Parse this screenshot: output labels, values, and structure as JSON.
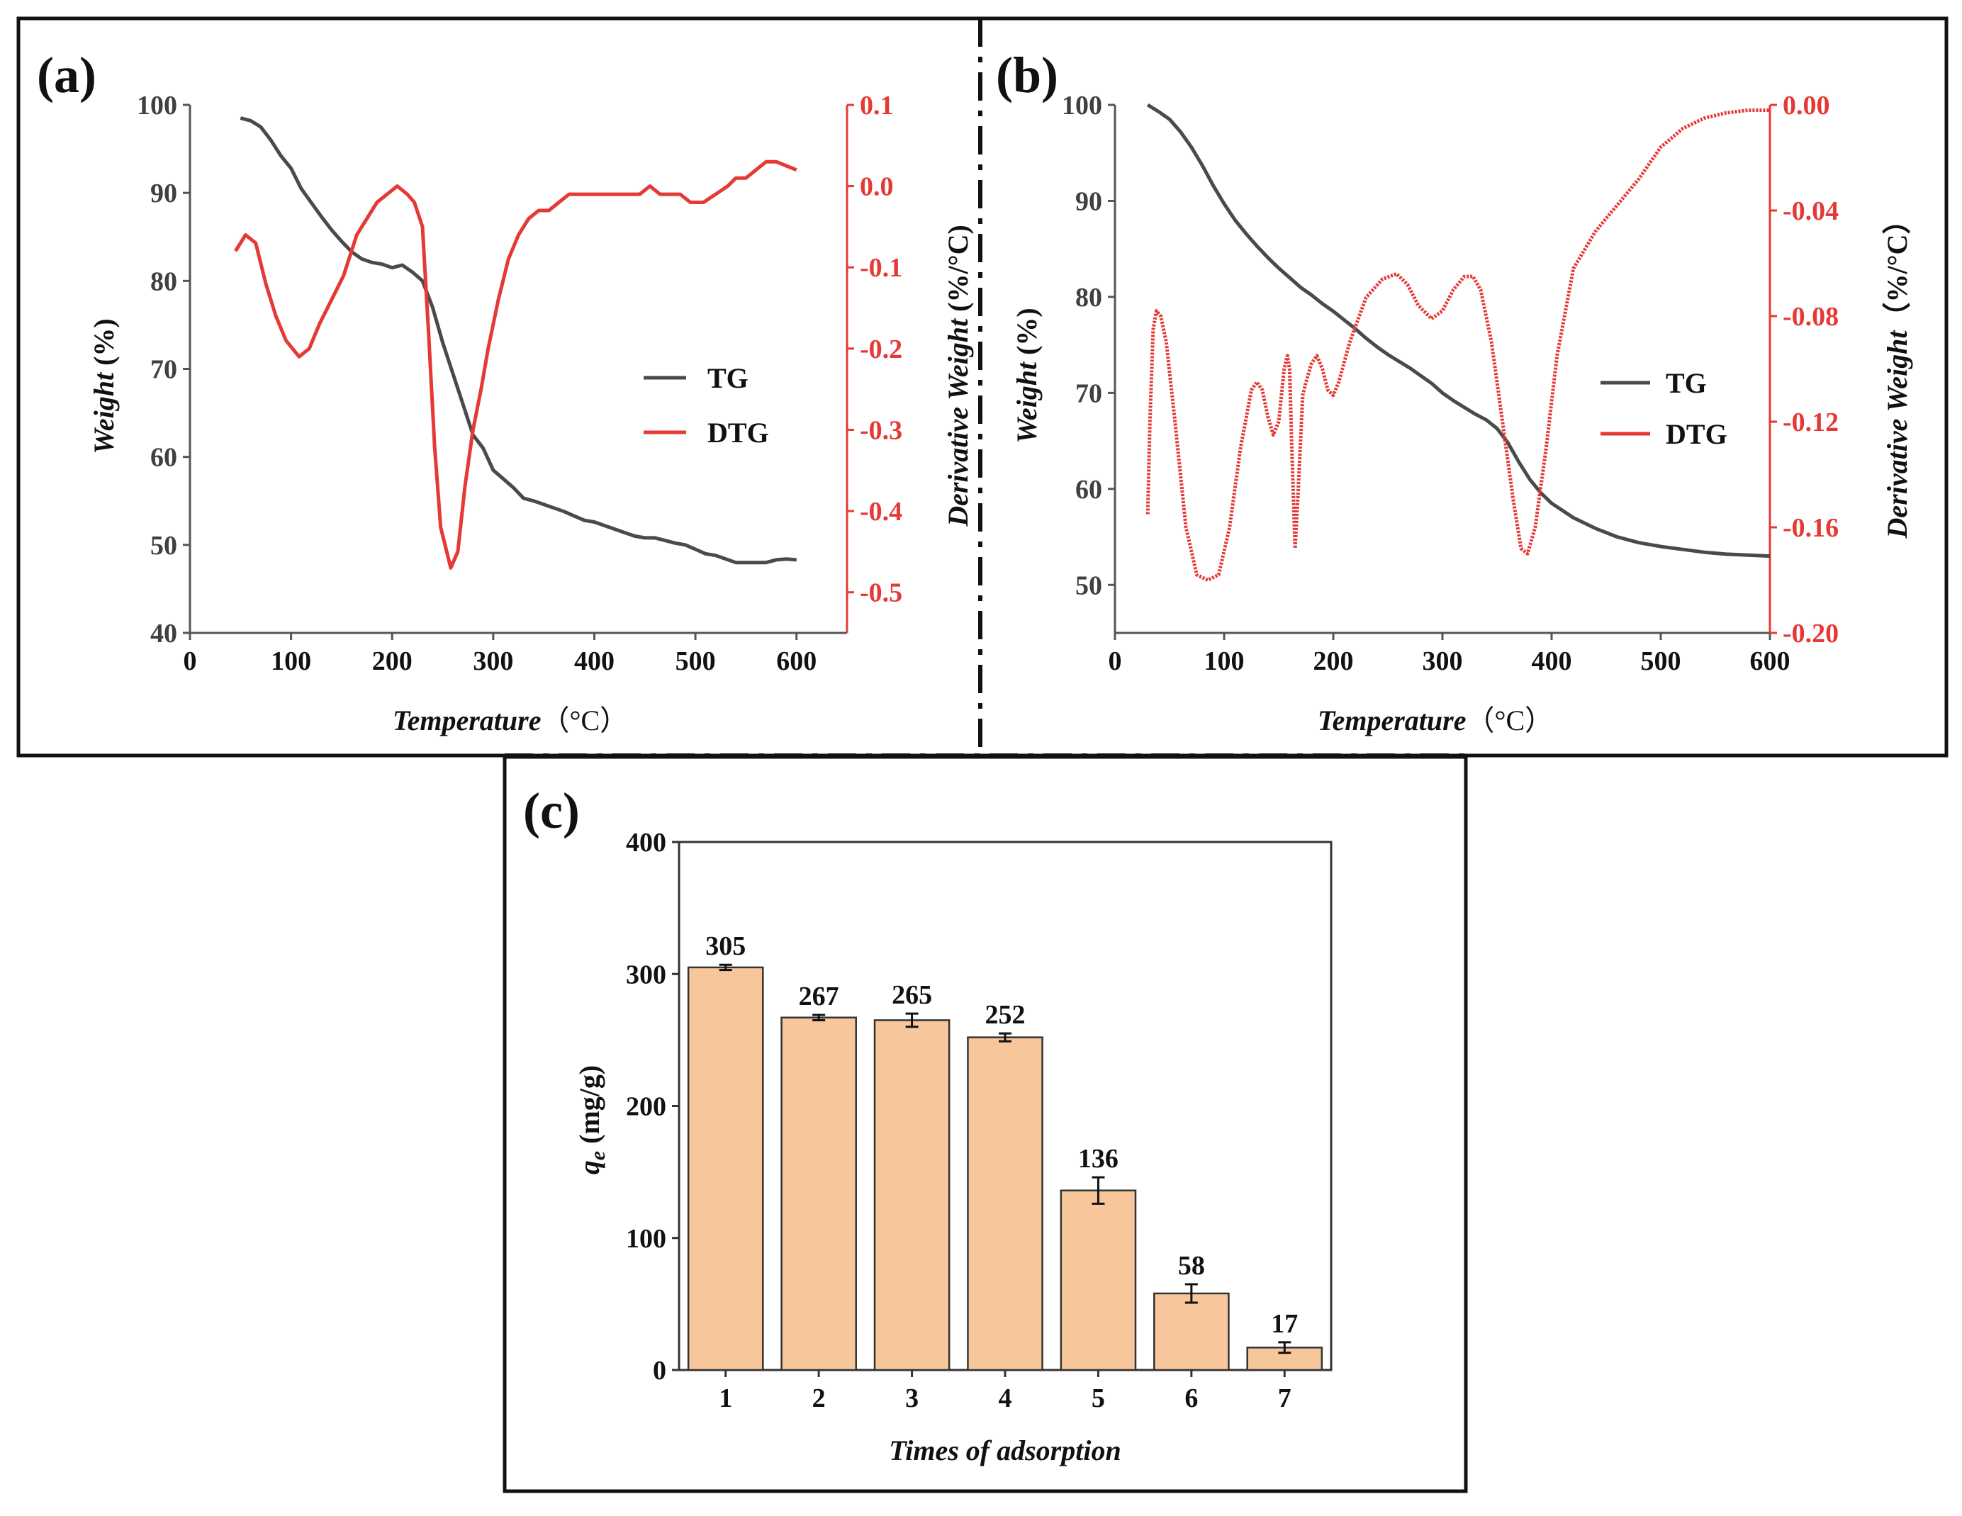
{
  "colors": {
    "tg": "#4a4a4a",
    "dtg": "#e53935",
    "bar": "#f7c79b",
    "bar_edge": "#333333",
    "frame": "#111111"
  },
  "chart_data": [
    {
      "panel": "(a)",
      "type": "line",
      "xlabel": "Temperature",
      "xunit": "（°C）",
      "ylabel": "Weight",
      "yunit": "(%)",
      "y2label": "Derivative Weight",
      "y2unit": "(%/°C)",
      "xlim": [
        0,
        650
      ],
      "ylim": [
        40,
        100
      ],
      "y2lim": [
        -0.55,
        0.1
      ],
      "xticks": [
        "0",
        "100",
        "200",
        "300",
        "400",
        "500",
        "600"
      ],
      "yticks": [
        "40",
        "50",
        "60",
        "70",
        "80",
        "90",
        "100"
      ],
      "y2ticks": [
        "-0.5",
        "-0.4",
        "-0.3",
        "-0.2",
        "-0.1",
        "0.0",
        "0.1"
      ],
      "legend": [
        "TG",
        "DTG"
      ],
      "series": [
        {
          "name": "TG",
          "axis": "left",
          "x": [
            50,
            60,
            70,
            80,
            90,
            100,
            110,
            120,
            130,
            140,
            150,
            160,
            170,
            180,
            190,
            200,
            210,
            220,
            230,
            240,
            250,
            260,
            270,
            280,
            290,
            300,
            310,
            320,
            330,
            340,
            350,
            360,
            370,
            380,
            390,
            400,
            410,
            420,
            430,
            440,
            450,
            460,
            470,
            480,
            490,
            500,
            510,
            520,
            530,
            540,
            550,
            560,
            570,
            580,
            590,
            600
          ],
          "y": [
            98.5,
            98.2,
            97.5,
            96.0,
            94.2,
            92.8,
            90.5,
            88.9,
            87.3,
            85.8,
            84.5,
            83.3,
            82.5,
            82.1,
            81.9,
            81.5,
            81.8,
            81.0,
            80.0,
            77.0,
            73.0,
            69.5,
            66.0,
            62.5,
            61.0,
            58.5,
            57.5,
            56.5,
            55.3,
            55.0,
            54.6,
            54.2,
            53.8,
            53.3,
            52.8,
            52.6,
            52.2,
            51.8,
            51.4,
            51.0,
            50.8,
            50.8,
            50.5,
            50.2,
            50.0,
            49.5,
            49.0,
            48.8,
            48.4,
            48.0,
            48.0,
            48.0,
            48.0,
            48.3,
            48.4,
            48.3
          ]
        },
        {
          "name": "DTG",
          "axis": "right",
          "x": [
            45,
            55,
            65,
            75,
            85,
            95,
            108,
            118,
            128,
            140,
            152,
            165,
            175,
            185,
            195,
            205,
            215,
            222,
            230,
            236,
            242,
            248,
            252,
            258,
            265,
            272,
            280,
            288,
            295,
            305,
            315,
            325,
            335,
            345,
            355,
            365,
            375,
            385,
            395,
            405,
            415,
            425,
            435,
            445,
            455,
            465,
            475,
            485,
            495,
            508,
            520,
            532,
            540,
            550,
            560,
            570,
            580,
            590,
            600
          ],
          "y": [
            -0.08,
            -0.06,
            -0.07,
            -0.12,
            -0.16,
            -0.19,
            -0.21,
            -0.2,
            -0.17,
            -0.14,
            -0.11,
            -0.06,
            -0.04,
            -0.02,
            -0.01,
            0.0,
            -0.01,
            -0.02,
            -0.05,
            -0.18,
            -0.32,
            -0.42,
            -0.44,
            -0.47,
            -0.45,
            -0.37,
            -0.3,
            -0.25,
            -0.2,
            -0.14,
            -0.09,
            -0.06,
            -0.04,
            -0.03,
            -0.03,
            -0.02,
            -0.01,
            -0.01,
            -0.01,
            -0.01,
            -0.01,
            -0.01,
            -0.01,
            -0.01,
            0.0,
            -0.01,
            -0.01,
            -0.01,
            -0.02,
            -0.02,
            -0.01,
            0.0,
            0.01,
            0.01,
            0.02,
            0.03,
            0.03,
            0.025,
            0.02
          ]
        }
      ]
    },
    {
      "panel": "(b)",
      "type": "line",
      "xlabel": "Temperature",
      "xunit": "（°C）",
      "ylabel": "Weight",
      "yunit": "(%)",
      "y2label": "Derivative Weight",
      "y2unit": "（%/°C）",
      "xlim": [
        0,
        600
      ],
      "ylim": [
        45,
        100
      ],
      "y2lim": [
        -0.2,
        0.0
      ],
      "xticks": [
        "0",
        "100",
        "200",
        "300",
        "400",
        "500",
        "600"
      ],
      "yticks": [
        "50",
        "60",
        "70",
        "80",
        "90",
        "100"
      ],
      "y2ticks": [
        "-0.20",
        "-0.16",
        "-0.12",
        "-0.08",
        "-0.04",
        "0.00"
      ],
      "legend": [
        "TG",
        "DTG"
      ],
      "series": [
        {
          "name": "TG",
          "axis": "left",
          "x": [
            30,
            40,
            50,
            60,
            70,
            80,
            90,
            100,
            110,
            120,
            130,
            140,
            150,
            160,
            170,
            180,
            190,
            200,
            210,
            220,
            230,
            240,
            250,
            260,
            270,
            280,
            290,
            300,
            310,
            320,
            330,
            340,
            350,
            360,
            370,
            380,
            390,
            400,
            420,
            440,
            460,
            480,
            500,
            520,
            540,
            560,
            580,
            600
          ],
          "y": [
            100.0,
            99.3,
            98.5,
            97.2,
            95.6,
            93.7,
            91.6,
            89.7,
            88.0,
            86.6,
            85.3,
            84.1,
            83.0,
            82.0,
            81.0,
            80.2,
            79.3,
            78.5,
            77.6,
            76.7,
            75.7,
            74.8,
            74.0,
            73.3,
            72.6,
            71.8,
            71.0,
            70.0,
            69.2,
            68.5,
            67.8,
            67.2,
            66.3,
            64.8,
            62.8,
            61.0,
            59.6,
            58.5,
            57.0,
            55.9,
            55.0,
            54.4,
            54.0,
            53.7,
            53.4,
            53.2,
            53.1,
            53.0
          ]
        },
        {
          "name": "DTG",
          "axis": "right",
          "x": [
            30,
            32,
            35,
            38,
            42,
            47,
            55,
            65,
            75,
            85,
            95,
            105,
            115,
            125,
            130,
            135,
            140,
            145,
            150,
            155,
            158,
            160,
            162,
            165,
            168,
            172,
            175,
            180,
            185,
            190,
            195,
            200,
            205,
            215,
            230,
            245,
            258,
            268,
            278,
            290,
            300,
            310,
            320,
            328,
            335,
            345,
            355,
            365,
            372,
            378,
            385,
            395,
            405,
            420,
            440,
            460,
            480,
            500,
            520,
            540,
            560,
            580,
            600
          ],
          "y": [
            -0.155,
            -0.12,
            -0.085,
            -0.078,
            -0.08,
            -0.09,
            -0.12,
            -0.16,
            -0.178,
            -0.18,
            -0.178,
            -0.16,
            -0.13,
            -0.108,
            -0.105,
            -0.108,
            -0.118,
            -0.125,
            -0.12,
            -0.1,
            -0.095,
            -0.1,
            -0.13,
            -0.168,
            -0.145,
            -0.11,
            -0.105,
            -0.098,
            -0.095,
            -0.1,
            -0.108,
            -0.11,
            -0.105,
            -0.09,
            -0.073,
            -0.066,
            -0.064,
            -0.068,
            -0.076,
            -0.081,
            -0.078,
            -0.07,
            -0.065,
            -0.065,
            -0.07,
            -0.09,
            -0.12,
            -0.15,
            -0.168,
            -0.17,
            -0.16,
            -0.13,
            -0.095,
            -0.062,
            -0.048,
            -0.038,
            -0.028,
            -0.016,
            -0.009,
            -0.005,
            -0.003,
            -0.002,
            -0.002
          ]
        }
      ]
    },
    {
      "panel": "(c)",
      "type": "bar",
      "xlabel": "Times of adsorption",
      "ylabel": "q",
      "ylabel_sub": "e",
      "yunit": "(mg/g)",
      "categories": [
        "1",
        "2",
        "3",
        "4",
        "5",
        "6",
        "7"
      ],
      "values": [
        305,
        267,
        265,
        252,
        136,
        58,
        17
      ],
      "errors": [
        2,
        2,
        5,
        3,
        10,
        7,
        4
      ],
      "data_labels": [
        "305",
        "267",
        "265",
        "252",
        "136",
        "58",
        "17"
      ],
      "ylim": [
        0,
        400
      ],
      "yticks": [
        "0",
        "100",
        "200",
        "300",
        "400"
      ]
    }
  ]
}
